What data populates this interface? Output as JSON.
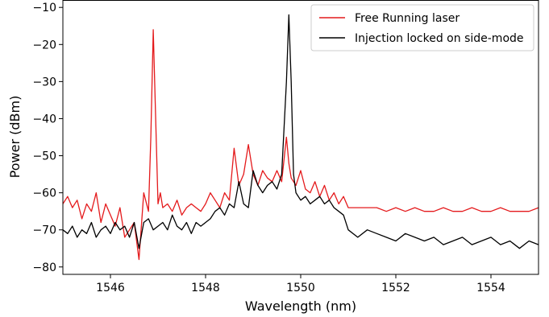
{
  "chart_data": {
    "type": "line",
    "xlabel": "Wavelength (nm)",
    "ylabel": "Power (dBm)",
    "xlim": [
      1545,
      1555
    ],
    "ylim": [
      -82,
      -8
    ],
    "xticks": [
      1546,
      1548,
      1550,
      1552,
      1554
    ],
    "yticks": [
      -80,
      -70,
      -60,
      -50,
      -40,
      -30,
      -20,
      -10
    ],
    "ytick_labels": [
      "−80",
      "−70",
      "−60",
      "−50",
      "−40",
      "−30",
      "−20",
      "−10"
    ],
    "legend_position": "top-right",
    "grid": false,
    "series": [
      {
        "name": "Free Running laser",
        "color": "#e41a1c",
        "x": [
          1545.0,
          1545.1,
          1545.2,
          1545.3,
          1545.4,
          1545.5,
          1545.6,
          1545.7,
          1545.8,
          1545.9,
          1546.0,
          1546.1,
          1546.2,
          1546.3,
          1546.4,
          1546.5,
          1546.6,
          1546.7,
          1546.8,
          1546.85,
          1546.9,
          1546.95,
          1547.0,
          1547.05,
          1547.1,
          1547.2,
          1547.3,
          1547.4,
          1547.5,
          1547.6,
          1547.7,
          1547.8,
          1547.9,
          1548.0,
          1548.1,
          1548.2,
          1548.3,
          1548.4,
          1548.5,
          1548.6,
          1548.7,
          1548.8,
          1548.9,
          1549.0,
          1549.1,
          1549.2,
          1549.3,
          1549.4,
          1549.5,
          1549.6,
          1549.7,
          1549.75,
          1549.8,
          1549.9,
          1550.0,
          1550.1,
          1550.2,
          1550.3,
          1550.4,
          1550.5,
          1550.6,
          1550.7,
          1550.8,
          1550.9,
          1551.0,
          1551.2,
          1551.4,
          1551.6,
          1551.8,
          1552.0,
          1552.2,
          1552.4,
          1552.6,
          1552.8,
          1553.0,
          1553.2,
          1553.4,
          1553.6,
          1553.8,
          1554.0,
          1554.2,
          1554.4,
          1554.6,
          1554.8,
          1555.0
        ],
        "y": [
          -63,
          -61,
          -64,
          -62,
          -67,
          -63,
          -65,
          -60,
          -68,
          -63,
          -66,
          -69,
          -64,
          -72,
          -70,
          -68,
          -78,
          -60,
          -65,
          -45,
          -16,
          -40,
          -63,
          -60,
          -64,
          -63,
          -65,
          -62,
          -66,
          -64,
          -63,
          -64,
          -65,
          -63,
          -60,
          -62,
          -64,
          -60,
          -62,
          -48,
          -58,
          -55,
          -47,
          -55,
          -58,
          -54,
          -56,
          -57,
          -54,
          -57,
          -45,
          -52,
          -56,
          -58,
          -54,
          -59,
          -60,
          -57,
          -61,
          -58,
          -62,
          -60,
          -63,
          -61,
          -64,
          -64,
          -64,
          -64,
          -65,
          -64,
          -65,
          -64,
          -65,
          -65,
          -64,
          -65,
          -65,
          -64,
          -65,
          -65,
          -64,
          -65,
          -65,
          -65,
          -64
        ]
      },
      {
        "name": "Injection locked on side-mode",
        "color": "#000000",
        "x": [
          1545.0,
          1545.1,
          1545.2,
          1545.3,
          1545.4,
          1545.5,
          1545.6,
          1545.7,
          1545.8,
          1545.9,
          1546.0,
          1546.1,
          1546.2,
          1546.3,
          1546.4,
          1546.5,
          1546.6,
          1546.7,
          1546.8,
          1546.9,
          1547.0,
          1547.1,
          1547.2,
          1547.3,
          1547.4,
          1547.5,
          1547.6,
          1547.7,
          1547.8,
          1547.9,
          1548.0,
          1548.1,
          1548.2,
          1548.3,
          1548.4,
          1548.5,
          1548.6,
          1548.7,
          1548.8,
          1548.9,
          1549.0,
          1549.1,
          1549.2,
          1549.3,
          1549.4,
          1549.5,
          1549.6,
          1549.7,
          1549.75,
          1549.8,
          1549.85,
          1549.9,
          1550.0,
          1550.1,
          1550.2,
          1550.3,
          1550.4,
          1550.5,
          1550.6,
          1550.7,
          1550.8,
          1550.9,
          1551.0,
          1551.2,
          1551.4,
          1551.6,
          1551.8,
          1552.0,
          1552.2,
          1552.4,
          1552.6,
          1552.8,
          1553.0,
          1553.2,
          1553.4,
          1553.6,
          1553.8,
          1554.0,
          1554.2,
          1554.4,
          1554.6,
          1554.8,
          1555.0
        ],
        "y": [
          -70,
          -71,
          -69,
          -72,
          -70,
          -71,
          -68,
          -72,
          -70,
          -69,
          -71,
          -68,
          -70,
          -69,
          -72,
          -68,
          -75,
          -68,
          -67,
          -70,
          -69,
          -68,
          -70,
          -66,
          -69,
          -70,
          -68,
          -71,
          -68,
          -69,
          -68,
          -67,
          -65,
          -64,
          -66,
          -63,
          -64,
          -57,
          -63,
          -64,
          -54,
          -58,
          -60,
          -58,
          -57,
          -59,
          -55,
          -30,
          -12,
          -30,
          -55,
          -60,
          -62,
          -61,
          -63,
          -62,
          -61,
          -63,
          -62,
          -64,
          -65,
          -66,
          -70,
          -72,
          -70,
          -71,
          -72,
          -73,
          -71,
          -72,
          -73,
          -72,
          -74,
          -73,
          -72,
          -74,
          -73,
          -72,
          -74,
          -73,
          -75,
          -73,
          -74
        ]
      }
    ]
  }
}
